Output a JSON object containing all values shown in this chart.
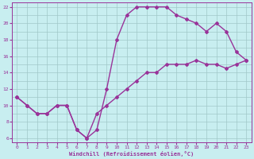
{
  "background_color": "#c8eef0",
  "grid_color": "#a0c8c8",
  "line_color": "#993399",
  "marker_color": "#993399",
  "xlabel": "Windchill (Refroidissement éolien,°C)",
  "xlabel_color": "#993399",
  "tick_color": "#993399",
  "xlim": [
    -0.5,
    23.5
  ],
  "ylim": [
    5.5,
    22.5
  ],
  "xticks": [
    0,
    1,
    2,
    3,
    4,
    5,
    6,
    7,
    8,
    9,
    10,
    11,
    12,
    13,
    14,
    15,
    16,
    17,
    18,
    19,
    20,
    21,
    22,
    23
  ],
  "yticks": [
    6,
    8,
    10,
    12,
    14,
    16,
    18,
    20,
    22
  ],
  "curve_upper_x": [
    0,
    1,
    2,
    3,
    4,
    5,
    6,
    7,
    8,
    9,
    10,
    11,
    12,
    13,
    14,
    15,
    16,
    17,
    18,
    19,
    20,
    21,
    22,
    23
  ],
  "curve_upper_y": [
    11,
    10,
    9,
    9,
    10,
    10,
    7,
    6,
    7,
    12,
    18,
    21,
    22,
    22,
    22,
    22,
    21,
    20.5,
    20,
    19,
    20,
    19,
    16.5,
    15.5
  ],
  "curve_lower_x": [
    0,
    1,
    2,
    3,
    4,
    5,
    6,
    7,
    8,
    9,
    10,
    11,
    12,
    13,
    14,
    15,
    16,
    17,
    18,
    19,
    20,
    21,
    22,
    23
  ],
  "curve_lower_y": [
    11,
    10,
    9,
    9,
    10,
    10,
    7,
    6,
    9,
    10,
    11,
    12,
    13,
    14,
    14,
    15,
    15,
    15,
    15.5,
    15,
    15,
    14.5,
    15,
    15.5
  ]
}
